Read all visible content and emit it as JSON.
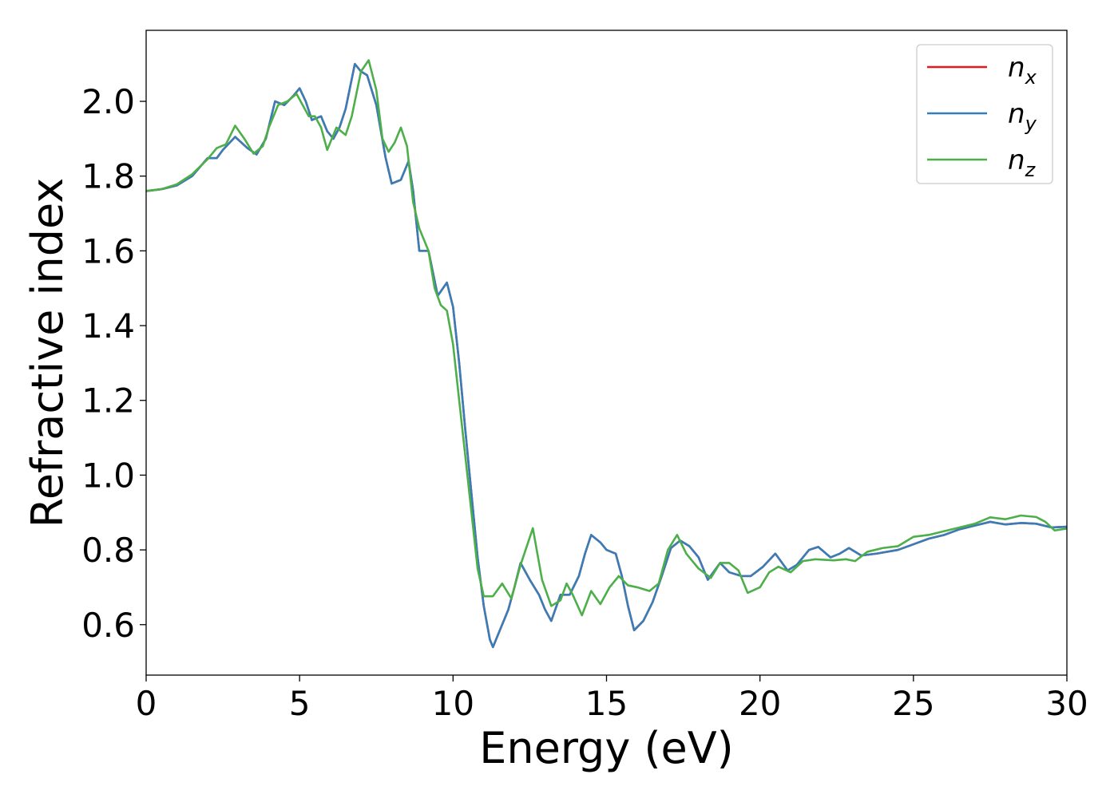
{
  "chart_data": {
    "type": "line",
    "xlabel": "Energy (eV)",
    "ylabel": "Refractive index",
    "xlim": [
      0,
      30
    ],
    "ylim": [
      0.465,
      2.19
    ],
    "xticks": [
      "0",
      "5",
      "10",
      "15",
      "20",
      "25",
      "30"
    ],
    "yticks": [
      "0.6",
      "0.8",
      "1.0",
      "1.2",
      "1.4",
      "1.6",
      "1.8",
      "2.0"
    ],
    "grid": false,
    "legend_position": "top-right",
    "series": [
      {
        "name": "n",
        "subscript": "x",
        "color": "#e41a1c",
        "points": [
          [
            0,
            1.76
          ],
          [
            0.5,
            1.765
          ],
          [
            1,
            1.775
          ],
          [
            1.5,
            1.8
          ],
          [
            2,
            1.848
          ],
          [
            2.3,
            1.848
          ],
          [
            2.5,
            1.87
          ],
          [
            2.9,
            1.905
          ],
          [
            3.3,
            1.875
          ],
          [
            3.6,
            1.858
          ],
          [
            3.9,
            1.9
          ],
          [
            4.2,
            2.0
          ],
          [
            4.5,
            1.99
          ],
          [
            4.8,
            2.015
          ],
          [
            5.0,
            2.035
          ],
          [
            5.2,
            2.0
          ],
          [
            5.4,
            1.95
          ],
          [
            5.7,
            1.96
          ],
          [
            5.9,
            1.92
          ],
          [
            6.1,
            1.9
          ],
          [
            6.3,
            1.93
          ],
          [
            6.5,
            1.98
          ],
          [
            6.8,
            2.1
          ],
          [
            7.0,
            2.08
          ],
          [
            7.2,
            2.07
          ],
          [
            7.5,
            1.99
          ],
          [
            7.8,
            1.85
          ],
          [
            8.0,
            1.78
          ],
          [
            8.3,
            1.79
          ],
          [
            8.55,
            1.84
          ],
          [
            8.7,
            1.76
          ],
          [
            8.9,
            1.6
          ],
          [
            9.2,
            1.6
          ],
          [
            9.5,
            1.48
          ],
          [
            9.8,
            1.515
          ],
          [
            10.0,
            1.45
          ],
          [
            10.2,
            1.3
          ],
          [
            10.4,
            1.12
          ],
          [
            10.6,
            0.95
          ],
          [
            10.8,
            0.78
          ],
          [
            11.0,
            0.65
          ],
          [
            11.2,
            0.56
          ],
          [
            11.3,
            0.54
          ],
          [
            11.5,
            0.58
          ],
          [
            11.8,
            0.64
          ],
          [
            12.0,
            0.7
          ],
          [
            12.2,
            0.765
          ],
          [
            12.5,
            0.72
          ],
          [
            12.8,
            0.68
          ],
          [
            13.0,
            0.64
          ],
          [
            13.2,
            0.61
          ],
          [
            13.5,
            0.68
          ],
          [
            13.8,
            0.68
          ],
          [
            14.1,
            0.73
          ],
          [
            14.3,
            0.79
          ],
          [
            14.5,
            0.84
          ],
          [
            14.8,
            0.82
          ],
          [
            15.0,
            0.8
          ],
          [
            15.3,
            0.79
          ],
          [
            15.5,
            0.73
          ],
          [
            15.7,
            0.65
          ],
          [
            15.9,
            0.585
          ],
          [
            16.2,
            0.61
          ],
          [
            16.5,
            0.66
          ],
          [
            16.8,
            0.73
          ],
          [
            17.1,
            0.805
          ],
          [
            17.4,
            0.825
          ],
          [
            17.7,
            0.81
          ],
          [
            18.0,
            0.78
          ],
          [
            18.3,
            0.72
          ],
          [
            18.7,
            0.765
          ],
          [
            19.0,
            0.74
          ],
          [
            19.4,
            0.73
          ],
          [
            19.7,
            0.73
          ],
          [
            20.1,
            0.755
          ],
          [
            20.5,
            0.79
          ],
          [
            20.9,
            0.745
          ],
          [
            21.2,
            0.76
          ],
          [
            21.6,
            0.8
          ],
          [
            21.9,
            0.808
          ],
          [
            22.3,
            0.78
          ],
          [
            22.6,
            0.79
          ],
          [
            22.9,
            0.805
          ],
          [
            23.3,
            0.785
          ],
          [
            23.8,
            0.79
          ],
          [
            24.5,
            0.8
          ],
          [
            25.0,
            0.815
          ],
          [
            25.5,
            0.83
          ],
          [
            26.0,
            0.84
          ],
          [
            26.5,
            0.855
          ],
          [
            27.0,
            0.865
          ],
          [
            27.5,
            0.875
          ],
          [
            28.0,
            0.868
          ],
          [
            28.5,
            0.872
          ],
          [
            29.0,
            0.87
          ],
          [
            29.5,
            0.86
          ],
          [
            30.0,
            0.862
          ]
        ]
      },
      {
        "name": "n",
        "subscript": "y",
        "color": "#377eb8",
        "points": [
          [
            0,
            1.76
          ],
          [
            0.5,
            1.765
          ],
          [
            1,
            1.775
          ],
          [
            1.5,
            1.8
          ],
          [
            2,
            1.848
          ],
          [
            2.3,
            1.848
          ],
          [
            2.5,
            1.87
          ],
          [
            2.9,
            1.905
          ],
          [
            3.3,
            1.875
          ],
          [
            3.6,
            1.858
          ],
          [
            3.9,
            1.9
          ],
          [
            4.2,
            2.0
          ],
          [
            4.5,
            1.99
          ],
          [
            4.8,
            2.015
          ],
          [
            5.0,
            2.035
          ],
          [
            5.2,
            2.0
          ],
          [
            5.4,
            1.95
          ],
          [
            5.7,
            1.96
          ],
          [
            5.9,
            1.92
          ],
          [
            6.1,
            1.9
          ],
          [
            6.3,
            1.93
          ],
          [
            6.5,
            1.98
          ],
          [
            6.8,
            2.1
          ],
          [
            7.0,
            2.08
          ],
          [
            7.2,
            2.07
          ],
          [
            7.5,
            1.99
          ],
          [
            7.8,
            1.85
          ],
          [
            8.0,
            1.78
          ],
          [
            8.3,
            1.79
          ],
          [
            8.55,
            1.84
          ],
          [
            8.7,
            1.76
          ],
          [
            8.9,
            1.6
          ],
          [
            9.2,
            1.6
          ],
          [
            9.5,
            1.48
          ],
          [
            9.8,
            1.515
          ],
          [
            10.0,
            1.45
          ],
          [
            10.2,
            1.3
          ],
          [
            10.4,
            1.12
          ],
          [
            10.6,
            0.95
          ],
          [
            10.8,
            0.78
          ],
          [
            11.0,
            0.65
          ],
          [
            11.2,
            0.56
          ],
          [
            11.3,
            0.54
          ],
          [
            11.5,
            0.58
          ],
          [
            11.8,
            0.64
          ],
          [
            12.0,
            0.7
          ],
          [
            12.2,
            0.765
          ],
          [
            12.5,
            0.72
          ],
          [
            12.8,
            0.68
          ],
          [
            13.0,
            0.64
          ],
          [
            13.2,
            0.61
          ],
          [
            13.5,
            0.68
          ],
          [
            13.8,
            0.68
          ],
          [
            14.1,
            0.73
          ],
          [
            14.3,
            0.79
          ],
          [
            14.5,
            0.84
          ],
          [
            14.8,
            0.82
          ],
          [
            15.0,
            0.8
          ],
          [
            15.3,
            0.79
          ],
          [
            15.5,
            0.73
          ],
          [
            15.7,
            0.65
          ],
          [
            15.9,
            0.585
          ],
          [
            16.2,
            0.61
          ],
          [
            16.5,
            0.66
          ],
          [
            16.8,
            0.73
          ],
          [
            17.1,
            0.805
          ],
          [
            17.4,
            0.825
          ],
          [
            17.7,
            0.81
          ],
          [
            18.0,
            0.78
          ],
          [
            18.3,
            0.72
          ],
          [
            18.7,
            0.765
          ],
          [
            19.0,
            0.74
          ],
          [
            19.4,
            0.73
          ],
          [
            19.7,
            0.73
          ],
          [
            20.1,
            0.755
          ],
          [
            20.5,
            0.79
          ],
          [
            20.9,
            0.745
          ],
          [
            21.2,
            0.76
          ],
          [
            21.6,
            0.8
          ],
          [
            21.9,
            0.808
          ],
          [
            22.3,
            0.78
          ],
          [
            22.6,
            0.79
          ],
          [
            22.9,
            0.805
          ],
          [
            23.3,
            0.785
          ],
          [
            23.8,
            0.79
          ],
          [
            24.5,
            0.8
          ],
          [
            25.0,
            0.815
          ],
          [
            25.5,
            0.83
          ],
          [
            26.0,
            0.84
          ],
          [
            26.5,
            0.855
          ],
          [
            27.0,
            0.865
          ],
          [
            27.5,
            0.875
          ],
          [
            28.0,
            0.868
          ],
          [
            28.5,
            0.872
          ],
          [
            29.0,
            0.87
          ],
          [
            29.5,
            0.86
          ],
          [
            30.0,
            0.862
          ]
        ]
      },
      {
        "name": "n",
        "subscript": "z",
        "color": "#4daf4a",
        "points": [
          [
            0,
            1.76
          ],
          [
            0.5,
            1.765
          ],
          [
            1,
            1.778
          ],
          [
            1.5,
            1.805
          ],
          [
            2,
            1.845
          ],
          [
            2.3,
            1.875
          ],
          [
            2.6,
            1.885
          ],
          [
            2.9,
            1.935
          ],
          [
            3.2,
            1.9
          ],
          [
            3.5,
            1.86
          ],
          [
            3.8,
            1.88
          ],
          [
            4.0,
            1.93
          ],
          [
            4.3,
            1.99
          ],
          [
            4.6,
            2.0
          ],
          [
            4.9,
            2.02
          ],
          [
            5.1,
            1.99
          ],
          [
            5.3,
            1.96
          ],
          [
            5.5,
            1.96
          ],
          [
            5.7,
            1.93
          ],
          [
            5.9,
            1.87
          ],
          [
            6.2,
            1.93
          ],
          [
            6.5,
            1.91
          ],
          [
            6.7,
            1.96
          ],
          [
            7.0,
            2.08
          ],
          [
            7.25,
            2.11
          ],
          [
            7.5,
            2.03
          ],
          [
            7.7,
            1.9
          ],
          [
            7.9,
            1.865
          ],
          [
            8.1,
            1.89
          ],
          [
            8.3,
            1.93
          ],
          [
            8.5,
            1.88
          ],
          [
            8.7,
            1.73
          ],
          [
            8.9,
            1.66
          ],
          [
            9.2,
            1.6
          ],
          [
            9.4,
            1.5
          ],
          [
            9.6,
            1.455
          ],
          [
            9.8,
            1.44
          ],
          [
            10.0,
            1.35
          ],
          [
            10.2,
            1.2
          ],
          [
            10.4,
            1.05
          ],
          [
            10.6,
            0.9
          ],
          [
            10.8,
            0.75
          ],
          [
            11.0,
            0.676
          ],
          [
            11.3,
            0.676
          ],
          [
            11.6,
            0.71
          ],
          [
            11.9,
            0.67
          ],
          [
            12.2,
            0.76
          ],
          [
            12.6,
            0.858
          ],
          [
            12.9,
            0.72
          ],
          [
            13.2,
            0.65
          ],
          [
            13.5,
            0.665
          ],
          [
            13.7,
            0.71
          ],
          [
            13.9,
            0.68
          ],
          [
            14.2,
            0.625
          ],
          [
            14.5,
            0.69
          ],
          [
            14.8,
            0.655
          ],
          [
            15.1,
            0.7
          ],
          [
            15.4,
            0.73
          ],
          [
            15.7,
            0.705
          ],
          [
            16.0,
            0.7
          ],
          [
            16.4,
            0.69
          ],
          [
            16.7,
            0.71
          ],
          [
            17.0,
            0.8
          ],
          [
            17.3,
            0.84
          ],
          [
            17.6,
            0.79
          ],
          [
            18.0,
            0.75
          ],
          [
            18.4,
            0.725
          ],
          [
            18.7,
            0.765
          ],
          [
            19.0,
            0.765
          ],
          [
            19.3,
            0.745
          ],
          [
            19.6,
            0.685
          ],
          [
            20.0,
            0.7
          ],
          [
            20.3,
            0.74
          ],
          [
            20.6,
            0.755
          ],
          [
            21.0,
            0.74
          ],
          [
            21.4,
            0.77
          ],
          [
            21.8,
            0.775
          ],
          [
            22.4,
            0.772
          ],
          [
            22.8,
            0.775
          ],
          [
            23.1,
            0.77
          ],
          [
            23.5,
            0.795
          ],
          [
            24.0,
            0.805
          ],
          [
            24.5,
            0.81
          ],
          [
            25.0,
            0.835
          ],
          [
            25.5,
            0.84
          ],
          [
            26.0,
            0.85
          ],
          [
            26.5,
            0.86
          ],
          [
            27.0,
            0.87
          ],
          [
            27.5,
            0.887
          ],
          [
            28.0,
            0.882
          ],
          [
            28.5,
            0.892
          ],
          [
            29.0,
            0.888
          ],
          [
            29.3,
            0.875
          ],
          [
            29.6,
            0.852
          ],
          [
            30.0,
            0.857
          ]
        ]
      }
    ]
  }
}
